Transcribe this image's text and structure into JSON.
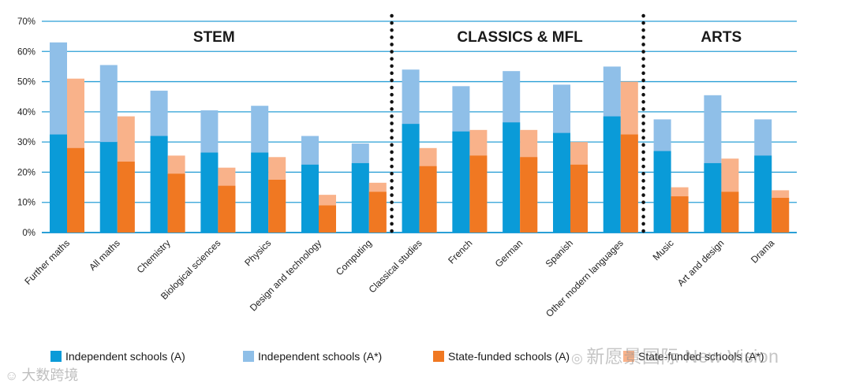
{
  "chart_data": {
    "type": "bar",
    "stacked_pairs": true,
    "y_ticks": [
      "0%",
      "10%",
      "20%",
      "30%",
      "40%",
      "50%",
      "60%",
      "70%"
    ],
    "ylim": [
      0,
      70
    ],
    "groups": [
      {
        "name": "STEM",
        "categories": [
          "Further maths",
          "All maths",
          "Chemistry",
          "Biological sciences",
          "Physics",
          "Design and technology",
          "Computing"
        ]
      },
      {
        "name": "CLASSICS & MFL",
        "categories": [
          "Classical studies",
          "French",
          "German",
          "Spanish",
          "Other modern languages"
        ]
      },
      {
        "name": "ARTS",
        "categories": [
          "Music",
          "Art and design",
          "Drama"
        ]
      }
    ],
    "categories": [
      "Further maths",
      "All maths",
      "Chemistry",
      "Biological sciences",
      "Physics",
      "Design and technology",
      "Computing",
      "Classical studies",
      "French",
      "German",
      "Spanish",
      "Other modern languages",
      "Music",
      "Art and design",
      "Drama"
    ],
    "series": [
      {
        "name": "Independent schools (A)",
        "color": "#0a9bd8",
        "values": [
          32.5,
          30,
          32,
          26.5,
          26.5,
          22.5,
          23,
          36,
          33.5,
          36.5,
          33,
          38.5,
          27,
          23,
          25.5
        ]
      },
      {
        "name": "Independent schools (A*)",
        "color": "#8fbfe8",
        "values": [
          63,
          55.5,
          47,
          40.5,
          42,
          32,
          29.5,
          54,
          48.5,
          53.5,
          49,
          55,
          37.5,
          45.5,
          37.5
        ]
      },
      {
        "name": "State-funded schools (A)",
        "color": "#f07822",
        "values": [
          28,
          23.5,
          19.5,
          15.5,
          17.5,
          9,
          13.5,
          22,
          25.5,
          25,
          22.5,
          32.5,
          12,
          13.5,
          11.5
        ]
      },
      {
        "name": "State-funded schools (A*)",
        "color": "#f9b28a",
        "values": [
          51,
          38.5,
          25.5,
          21.5,
          25,
          12.5,
          16.5,
          28,
          34,
          34,
          30,
          50,
          15,
          24.5,
          14
        ]
      }
    ]
  },
  "legend": [
    {
      "label": "Independent schools (A)",
      "color": "#0a9bd8"
    },
    {
      "label": "Independent schools (A*)",
      "color": "#8fbfe8"
    },
    {
      "label": "State-funded schools (A)",
      "color": "#f07822"
    },
    {
      "label": "State-funded schools (A*)",
      "color": "#f9b28a"
    }
  ],
  "watermarks": {
    "right": "新愿景国际 New Vision",
    "left": "大数跨境"
  }
}
